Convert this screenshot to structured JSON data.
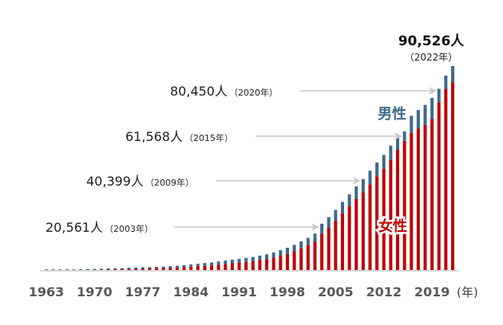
{
  "chart_data": {
    "type": "bar",
    "stacked": true,
    "title": "",
    "xlabel": "",
    "x_unit_label": "(年)",
    "ylabel": "",
    "ylim": [
      0,
      92000
    ],
    "grid": false,
    "categories": [
      1963,
      1964,
      1965,
      1966,
      1967,
      1968,
      1969,
      1970,
      1971,
      1972,
      1973,
      1974,
      1975,
      1976,
      1977,
      1978,
      1979,
      1980,
      1981,
      1982,
      1983,
      1984,
      1985,
      1986,
      1987,
      1988,
      1989,
      1990,
      1991,
      1992,
      1993,
      1994,
      1995,
      1996,
      1997,
      1998,
      1999,
      2000,
      2001,
      2002,
      2003,
      2004,
      2005,
      2006,
      2007,
      2008,
      2009,
      2010,
      2011,
      2012,
      2013,
      2014,
      2015,
      2016,
      2017,
      2018,
      2019,
      2020,
      2021,
      2022
    ],
    "x_tick_labels": [
      "1963",
      "1970",
      "1977",
      "1984",
      "1991",
      "1998",
      "2005",
      "2012",
      "2019"
    ],
    "series": [
      {
        "name": "女性",
        "color": "#c00000",
        "values": [
          0,
          0,
          0,
          0,
          0,
          300,
          350,
          400,
          450,
          500,
          550,
          600,
          650,
          700,
          750,
          800,
          850,
          900,
          1000,
          1100,
          1300,
          1500,
          1700,
          1900,
          2100,
          2400,
          2700,
          3000,
          3300,
          3600,
          3900,
          4400,
          4900,
          5500,
          6300,
          7200,
          8300,
          9600,
          11000,
          12700,
          16200,
          18900,
          21900,
          25200,
          28400,
          31600,
          34600,
          38100,
          41600,
          44900,
          48900,
          53400,
          57400,
          60900,
          62800,
          64500,
          67000,
          74400,
          80500,
          83400
        ]
      },
      {
        "name": "男性",
        "color": "#3d6a8a",
        "values": [
          300,
          300,
          300,
          300,
          300,
          100,
          100,
          100,
          150,
          200,
          250,
          300,
          350,
          400,
          450,
          500,
          550,
          600,
          700,
          800,
          900,
          1000,
          1100,
          1200,
          1300,
          1400,
          1500,
          1600,
          1700,
          1800,
          1900,
          2000,
          2100,
          2300,
          2500,
          2700,
          2900,
          3100,
          3300,
          3500,
          4361,
          4600,
          4800,
          5000,
          5200,
          5500,
          5799,
          6000,
          6100,
          6200,
          6300,
          6400,
          4168,
          7600,
          8200,
          8800,
          9400,
          6050,
          5800,
          7126
        ]
      }
    ],
    "totals_annotated": [
      {
        "year": "2003",
        "value": "20,561人",
        "year_label": "（2003年）"
      },
      {
        "year": "2009",
        "value": "40,399人",
        "year_label": "（2009年）"
      },
      {
        "year": "2015",
        "value": "61,568人",
        "year_label": "（2015年）"
      },
      {
        "year": "2020",
        "value": "80,450人",
        "year_label": "（2020年）"
      },
      {
        "year": "2022",
        "value": "90,526人",
        "year_label": "（2022年）"
      }
    ],
    "legend": [
      {
        "label": "男性",
        "color": "#3d6a8a",
        "placement": "inline-upper-right"
      },
      {
        "label": "女性",
        "color": "#c00000",
        "placement": "inline-lower-right"
      }
    ]
  }
}
